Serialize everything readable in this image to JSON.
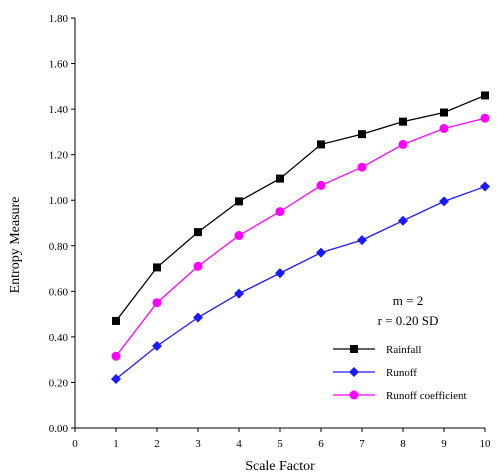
{
  "chart_data": {
    "type": "line",
    "xlabel": "Scale Factor",
    "ylabel": "Entropy Measure",
    "xlim": [
      0,
      10
    ],
    "ylim": [
      0,
      1.8
    ],
    "x_ticks": [
      "0",
      "1",
      "2",
      "3",
      "4",
      "5",
      "6",
      "7",
      "8",
      "9",
      "10"
    ],
    "y_ticks": [
      "0.00",
      "0.20",
      "0.40",
      "0.60",
      "0.80",
      "1.00",
      "1.20",
      "1.40",
      "1.60",
      "1.80"
    ],
    "grid": false,
    "legend_position": "bottom-right",
    "annotations": [
      "m = 2",
      "r = 0.20 SD"
    ],
    "x": [
      1,
      2,
      3,
      4,
      5,
      6,
      7,
      8,
      9,
      10
    ],
    "series": [
      {
        "name": "Rainfall",
        "marker": "square",
        "color": "#000000",
        "values": [
          0.47,
          0.705,
          0.86,
          0.995,
          1.095,
          1.245,
          1.29,
          1.345,
          1.385,
          1.46
        ]
      },
      {
        "name": "Runoff",
        "marker": "diamond",
        "color": "#1a1aff",
        "values": [
          0.215,
          0.36,
          0.485,
          0.59,
          0.68,
          0.77,
          0.825,
          0.91,
          0.995,
          1.06
        ]
      },
      {
        "name": "Runoff coefficient",
        "marker": "circle",
        "color": "#ff00ff",
        "values": [
          0.315,
          0.55,
          0.71,
          0.845,
          0.95,
          1.065,
          1.145,
          1.245,
          1.315,
          1.36
        ]
      }
    ]
  }
}
